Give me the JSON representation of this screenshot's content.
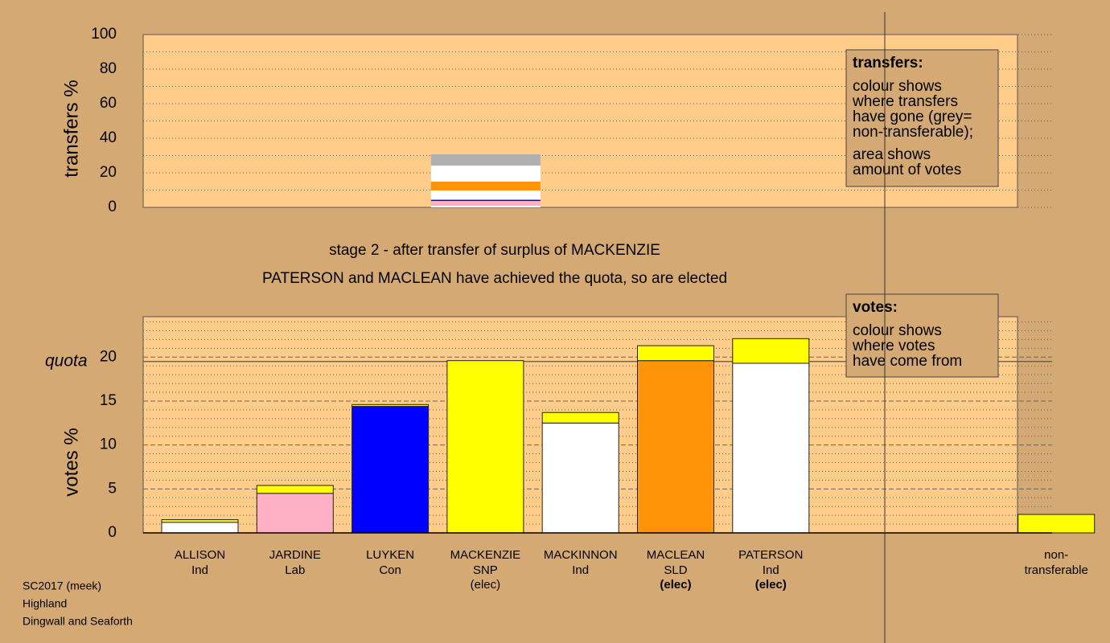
{
  "chart_data": [
    {
      "type": "stacked",
      "ylabel": "transfers %",
      "ylim": [
        0,
        100
      ],
      "yticks": [
        0,
        20,
        40,
        60,
        80,
        100
      ],
      "minor_yticks": [
        10,
        30,
        50,
        70,
        90
      ],
      "series": [
        {
          "color": "#ffffff",
          "values": [
            0.9
          ]
        },
        {
          "color": "#ffb0c4",
          "values": [
            2.8
          ]
        },
        {
          "color": "#0000ff",
          "values": [
            0.7
          ]
        },
        {
          "color": "#ffffff",
          "values": [
            5.4
          ]
        },
        {
          "color": "#ff9408",
          "values": [
            5.1
          ]
        },
        {
          "color": "#ffffff",
          "values": [
            9.3
          ]
        },
        {
          "color": "#b0b0b0",
          "values": [
            6.5
          ]
        }
      ],
      "note": {
        "title": "transfers:",
        "paragraphs": [
          [
            "colour shows",
            "where transfers",
            "have gone (grey=",
            "non-transferable);"
          ],
          [
            "area shows",
            "amount of votes"
          ]
        ]
      }
    },
    {
      "type": "stacked",
      "ylabel": "votes %",
      "ylim": [
        0,
        24.6
      ],
      "yticks": [
        0,
        5,
        10,
        15,
        20
      ],
      "minor_yticks": [
        1,
        2,
        3,
        4,
        6,
        7,
        8,
        9,
        11,
        12,
        13,
        14,
        16,
        17,
        18,
        19,
        21,
        22,
        23,
        24
      ],
      "quota": {
        "label": "quota",
        "value": 19.5
      },
      "categories": [
        [
          "ALLISON",
          "Ind"
        ],
        [
          "JARDINE",
          "Lab"
        ],
        [
          "LUYKEN",
          "Con"
        ],
        [
          "MACKENZIE",
          "SNP"
        ],
        [
          "MACKINNON",
          "Ind"
        ],
        [
          "MACLEAN",
          "SLD"
        ],
        [
          "PATERSON",
          "Ind"
        ],
        [
          "non-",
          "transferable"
        ]
      ],
      "notes": [
        null,
        null,
        null,
        "(elec)",
        null,
        "(elec)",
        "(elec)",
        null
      ],
      "notes_bold": [
        false,
        false,
        false,
        false,
        false,
        true,
        true,
        false
      ],
      "series": [
        {
          "colors": [
            "#ffffff",
            "#ffb0c4",
            "#0000ff",
            "#ffff00",
            "#ffffff",
            "#ff9408",
            "#ffffff",
            "#ffff00"
          ],
          "values": [
            1.2,
            4.5,
            14.4,
            19.6,
            12.5,
            19.6,
            19.3,
            0
          ]
        },
        {
          "color": "#ffff00",
          "values": [
            0.3,
            0.9,
            0.2,
            0,
            1.2,
            1.7,
            2.8,
            2.1
          ]
        }
      ],
      "note": {
        "title": "votes:",
        "paragraphs": [
          [
            "colour shows",
            "where votes",
            "have come from"
          ]
        ]
      }
    }
  ],
  "stage": [
    "stage 2 - after transfer of surplus of MACKENZIE",
    "PATERSON and MACLEAN have achieved the quota, so are elected"
  ],
  "footer": [
    "SC2017 (meek)",
    "Highland",
    "Dingwall and Seaforth"
  ]
}
